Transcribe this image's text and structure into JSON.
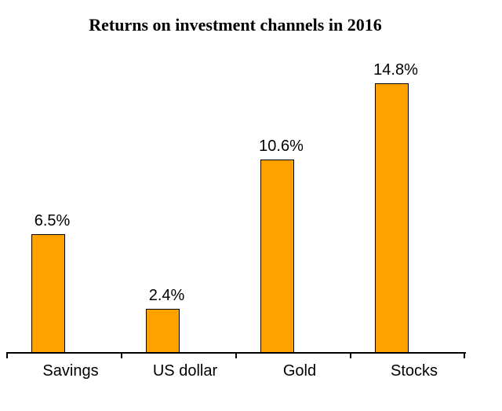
{
  "chart_data": {
    "type": "bar",
    "title": "Returns on investment channels in 2016",
    "categories": [
      "Savings",
      "US dollar",
      "Gold",
      "Stocks"
    ],
    "values": [
      6.5,
      2.4,
      10.6,
      14.8
    ],
    "value_labels": [
      "6.5%",
      "2.4%",
      "10.6%",
      "14.8%"
    ],
    "xlabel": "",
    "ylabel": "",
    "ylim": [
      0,
      16
    ],
    "grid": false,
    "legend": false,
    "colors": {
      "bar_fill": "#FFA200",
      "bar_border": "#000000",
      "axis": "#000000",
      "text": "#000000",
      "background": "#FFFFFF"
    }
  }
}
